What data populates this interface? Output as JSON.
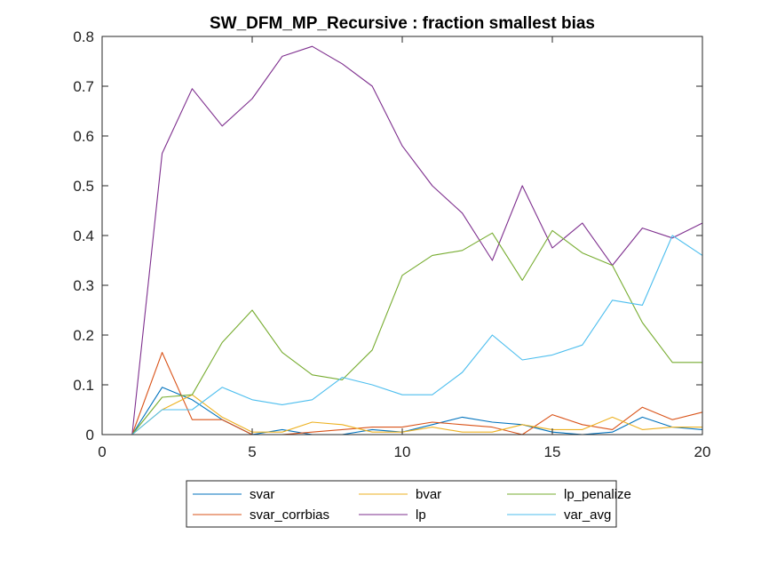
{
  "chart_data": {
    "type": "line",
    "title": "SW_DFM_MP_Recursive : fraction smallest bias",
    "xlabel": "",
    "ylabel": "",
    "xlim": [
      0,
      20
    ],
    "ylim": [
      0,
      0.8
    ],
    "xticks": [
      0,
      5,
      10,
      15,
      20
    ],
    "yticks": [
      0,
      0.1,
      0.2,
      0.3,
      0.4,
      0.5,
      0.6,
      0.7,
      0.8
    ],
    "xtick_labels": [
      "0",
      "5",
      "10",
      "15",
      "20"
    ],
    "ytick_labels": [
      "0",
      "0.1",
      "0.2",
      "0.3",
      "0.4",
      "0.5",
      "0.6",
      "0.7",
      "0.8"
    ],
    "grid": false,
    "legend_position": "bottom",
    "x": [
      1,
      2,
      3,
      4,
      5,
      6,
      7,
      8,
      9,
      10,
      11,
      12,
      13,
      14,
      15,
      16,
      17,
      18,
      19,
      20
    ],
    "series": [
      {
        "name": "svar",
        "color": "#0072BD",
        "values": [
          0,
          0.095,
          0.07,
          0.03,
          0,
          0.01,
          0,
          0,
          0.01,
          0.005,
          0.02,
          0.035,
          0.025,
          0.02,
          0.005,
          0,
          0.005,
          0.035,
          0.015,
          0.01
        ]
      },
      {
        "name": "svar_corrbias",
        "color": "#D95319",
        "values": [
          0,
          0.165,
          0.03,
          0.03,
          0,
          0,
          0.005,
          0.01,
          0.015,
          0.015,
          0.025,
          0.02,
          0.015,
          0,
          0.04,
          0.02,
          0.01,
          0.055,
          0.03,
          0.045
        ]
      },
      {
        "name": "bvar",
        "color": "#EDB120",
        "values": [
          0,
          0.05,
          0.08,
          0.035,
          0.005,
          0.005,
          0.025,
          0.02,
          0.005,
          0.005,
          0.015,
          0.005,
          0.005,
          0.02,
          0.01,
          0.01,
          0.035,
          0.01,
          0.015,
          0.015
        ]
      },
      {
        "name": "lp",
        "color": "#7E2F8E",
        "values": [
          0,
          0.565,
          0.695,
          0.62,
          0.675,
          0.76,
          0.78,
          0.745,
          0.7,
          0.58,
          0.5,
          0.445,
          0.35,
          0.5,
          0.375,
          0.425,
          0.34,
          0.415,
          0.395,
          0.425
        ]
      },
      {
        "name": "lp_penalize",
        "color": "#77AC30",
        "values": [
          0,
          0.075,
          0.08,
          0.185,
          0.25,
          0.165,
          0.12,
          0.11,
          0.17,
          0.32,
          0.36,
          0.37,
          0.405,
          0.31,
          0.41,
          0.365,
          0.34,
          0.225,
          0.145,
          0.145
        ]
      },
      {
        "name": "var_avg",
        "color": "#4DBEEE",
        "values": [
          0,
          0.05,
          0.05,
          0.095,
          0.07,
          0.06,
          0.07,
          0.115,
          0.1,
          0.08,
          0.08,
          0.125,
          0.2,
          0.15,
          0.16,
          0.18,
          0.27,
          0.26,
          0.4,
          0.36
        ]
      }
    ],
    "legend_order": [
      "svar",
      "bvar",
      "lp_penalize",
      "svar_corrbias",
      "lp",
      "var_avg"
    ]
  }
}
